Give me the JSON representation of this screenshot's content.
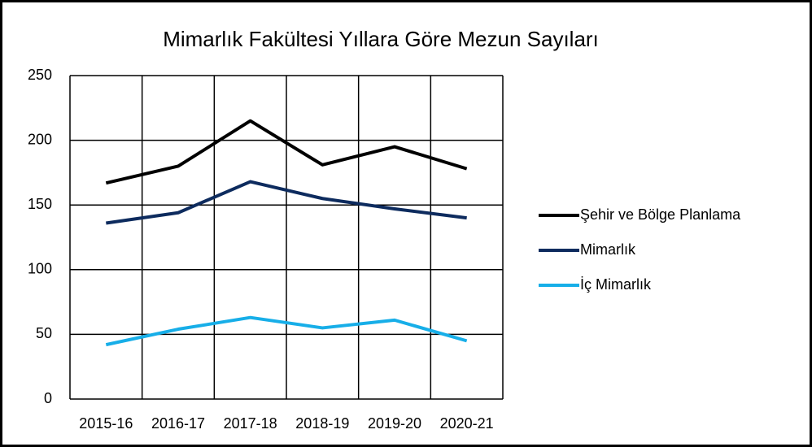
{
  "chart_data": {
    "type": "line",
    "title": "Mimarlık Fakültesi Yıllara Göre Mezun Sayıları",
    "categories": [
      "2015-16",
      "2016-17",
      "2017-18",
      "2018-19",
      "2019-20",
      "2020-21"
    ],
    "series": [
      {
        "name": "Şehir ve Bölge Planlama",
        "color": "#000000",
        "values": [
          167,
          180,
          215,
          181,
          195,
          178
        ]
      },
      {
        "name": "Mimarlık",
        "color": "#0d2b5e",
        "values": [
          136,
          144,
          168,
          155,
          147,
          140
        ]
      },
      {
        "name": "İç Mimarlık",
        "color": "#17aee8",
        "values": [
          42,
          54,
          63,
          55,
          61,
          45
        ]
      }
    ],
    "ylim": [
      0,
      250
    ],
    "yticks": [
      0,
      50,
      100,
      150,
      200,
      250
    ],
    "grid": true,
    "legend": "right"
  }
}
